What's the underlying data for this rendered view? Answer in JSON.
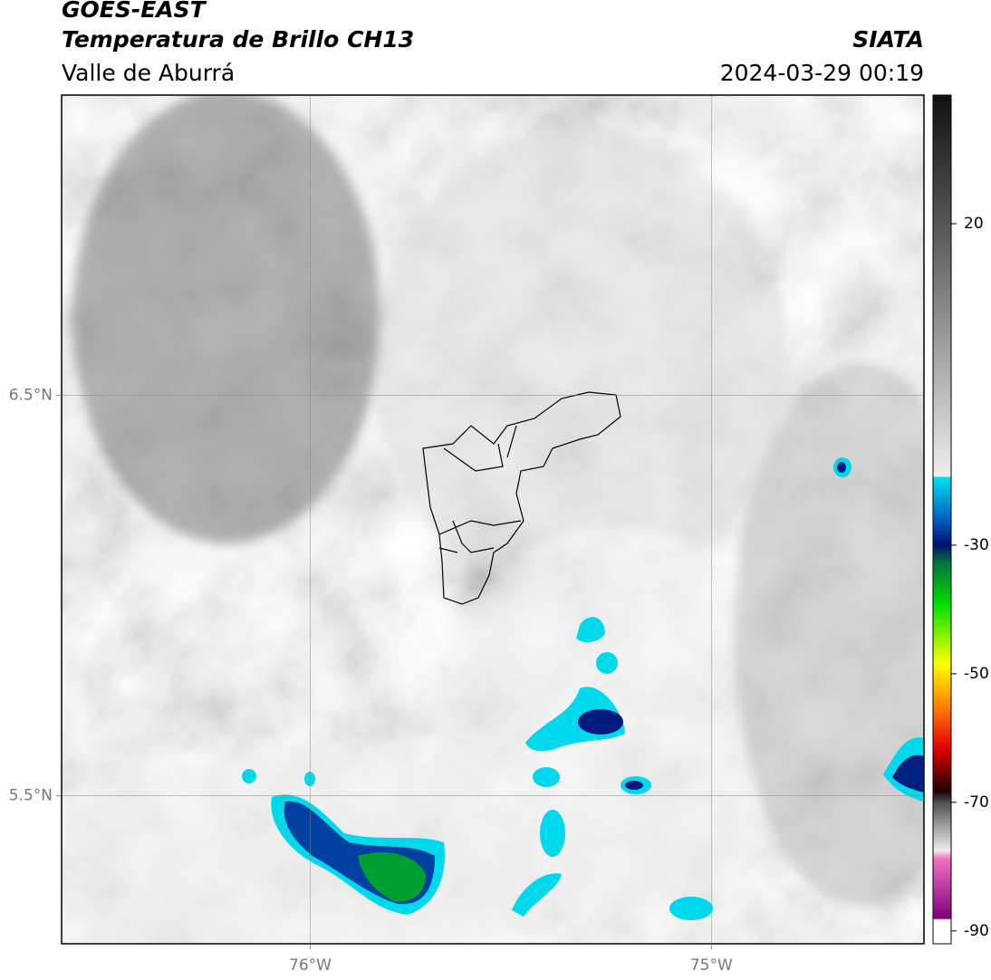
{
  "header": {
    "title": "GOES-EAST",
    "subtitle": "Temperatura de Brillo CH13",
    "region": "Valle de Aburrá",
    "source": "SIATA",
    "datetime": "2024-03-29 00:19"
  },
  "map": {
    "xlim": [
      -76.62,
      -74.47
    ],
    "ylim": [
      5.13,
      7.25
    ],
    "xticks": [
      {
        "value": -76,
        "label": "76°W"
      },
      {
        "value": -75,
        "label": "75°W"
      }
    ],
    "yticks": [
      {
        "value": 6.5,
        "label": "6.5°N"
      },
      {
        "value": 5.5,
        "label": "5.5°N"
      }
    ]
  },
  "colorbar": {
    "lim": [
      -92,
      40
    ],
    "ticks": [
      20,
      -30,
      -50,
      -70,
      -90
    ]
  }
}
